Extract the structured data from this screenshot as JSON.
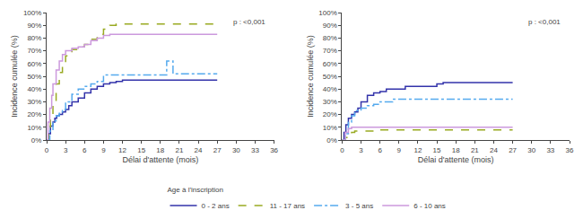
{
  "chart_data": [
    {
      "type": "step",
      "x_label": "Délai d'attente (mois)",
      "y_label": "Incidence cumulée (%)",
      "annotations": [
        "p : <0,001"
      ],
      "legend_title": "Age à l'inscription",
      "legend": "bottom",
      "grid": false,
      "xlim": [
        0,
        36
      ],
      "ylim": [
        0,
        100
      ],
      "xticks": [
        0,
        3,
        6,
        9,
        12,
        15,
        18,
        21,
        24,
        27,
        30,
        33,
        36
      ],
      "yticks": [
        {
          "value": 0,
          "label": "0%"
        },
        {
          "value": 10,
          "label": "10%"
        },
        {
          "value": 20,
          "label": "20%"
        },
        {
          "value": 30,
          "label": "30%"
        },
        {
          "value": 40,
          "label": "40%"
        },
        {
          "value": 50,
          "label": "50%"
        },
        {
          "value": 60,
          "label": "60%"
        },
        {
          "value": 70,
          "label": "70%"
        },
        {
          "value": 80,
          "label": "80%"
        },
        {
          "value": 90,
          "label": "90%"
        },
        {
          "value": 100,
          "label": "100%"
        }
      ],
      "series": [
        {
          "name": "0 - 2 ans",
          "color": "#3333aa",
          "line_style": "solid",
          "x": [
            0,
            0.3,
            0.6,
            1,
            1.3,
            1.6,
            2,
            2.5,
            3,
            3.5,
            4,
            5,
            6,
            7,
            8,
            9,
            10,
            11,
            12,
            27
          ],
          "values": [
            0,
            5,
            11,
            14,
            17,
            19,
            20,
            22,
            24,
            27,
            30,
            33,
            37,
            40,
            42,
            44,
            45,
            46,
            47,
            47
          ]
        },
        {
          "name": "11 - 17 ans",
          "color": "#99aa22",
          "line_style": "dashed",
          "x": [
            0,
            0.3,
            0.6,
            1,
            1.5,
            2,
            2.5,
            3,
            4,
            5,
            6,
            7,
            8,
            9,
            10,
            11,
            12,
            27
          ],
          "values": [
            0,
            9,
            20,
            30,
            44,
            53,
            60,
            66,
            71,
            73,
            75,
            79,
            83,
            87,
            90,
            91,
            91,
            91
          ]
        },
        {
          "name": "3 - 5 ans",
          "color": "#55aaee",
          "line_style": "dashdot",
          "x": [
            0,
            0.5,
            1,
            1.5,
            2,
            2.5,
            3,
            4,
            5,
            6,
            7,
            8,
            9,
            12,
            15,
            18,
            19,
            20,
            21,
            27
          ],
          "values": [
            0,
            7,
            15,
            19,
            21,
            24,
            30,
            36,
            40,
            42,
            44,
            46,
            51,
            51,
            51,
            51,
            62,
            52,
            52,
            52
          ]
        },
        {
          "name": "6 - 10 ans",
          "color": "#cc99dd",
          "line_style": "solid",
          "x": [
            0,
            0.2,
            0.5,
            0.8,
            1,
            1.5,
            2,
            2.5,
            3,
            4,
            5,
            6,
            7,
            8,
            9,
            10,
            12,
            27
          ],
          "values": [
            0,
            14,
            25,
            35,
            44,
            55,
            62,
            67,
            70,
            72,
            73,
            75,
            78,
            80,
            82,
            83,
            83,
            83
          ]
        }
      ]
    },
    {
      "type": "step",
      "x_label": "Délai d'attente (mois)",
      "y_label": "Incidence cumulée (%)",
      "annotations": [
        "p : <0,001"
      ],
      "grid": false,
      "xlim": [
        0,
        36
      ],
      "ylim": [
        0,
        100
      ],
      "xticks": [
        0,
        3,
        6,
        9,
        12,
        15,
        18,
        21,
        24,
        27,
        30,
        33,
        36
      ],
      "yticks": [
        {
          "value": 0,
          "label": "0%"
        },
        {
          "value": 10,
          "label": "10%"
        },
        {
          "value": 20,
          "label": "20%"
        },
        {
          "value": 30,
          "label": "30%"
        },
        {
          "value": 40,
          "label": "40%"
        },
        {
          "value": 50,
          "label": "50%"
        },
        {
          "value": 60,
          "label": "60%"
        },
        {
          "value": 70,
          "label": "70%"
        },
        {
          "value": 80,
          "label": "80%"
        },
        {
          "value": 90,
          "label": "90%"
        },
        {
          "value": 100,
          "label": "100%"
        }
      ],
      "series": [
        {
          "name": "0 - 2 ans",
          "color": "#3333aa",
          "line_style": "solid",
          "x": [
            0,
            0.3,
            0.6,
            1,
            1.5,
            2,
            2.5,
            3,
            4,
            5,
            6,
            7,
            8,
            10,
            15,
            16,
            27
          ],
          "values": [
            0,
            6,
            12,
            17,
            20,
            22,
            25,
            30,
            35,
            37,
            38,
            40,
            40,
            42,
            44,
            45,
            45
          ]
        },
        {
          "name": "11 - 17 ans",
          "color": "#99aa22",
          "line_style": "dashed",
          "x": [
            0,
            0.5,
            1,
            1.5,
            2,
            3,
            4,
            5,
            6,
            7,
            8,
            27
          ],
          "values": [
            0,
            2,
            4,
            6,
            7,
            7,
            7,
            7,
            8,
            8,
            8,
            8
          ]
        },
        {
          "name": "3 - 5 ans",
          "color": "#55aaee",
          "line_style": "dashdot",
          "x": [
            0,
            0.5,
            1,
            1.5,
            2,
            3,
            4,
            5,
            6,
            8,
            10,
            12,
            27
          ],
          "values": [
            0,
            5,
            14,
            19,
            23,
            25,
            27,
            28,
            30,
            32,
            32,
            32,
            32
          ]
        },
        {
          "name": "6 - 10 ans",
          "color": "#cc99dd",
          "line_style": "solid",
          "x": [
            0,
            0.5,
            1,
            1.5,
            2,
            3,
            4,
            27
          ],
          "values": [
            0,
            6,
            9,
            10,
            10,
            10,
            10,
            10
          ]
        }
      ]
    }
  ]
}
